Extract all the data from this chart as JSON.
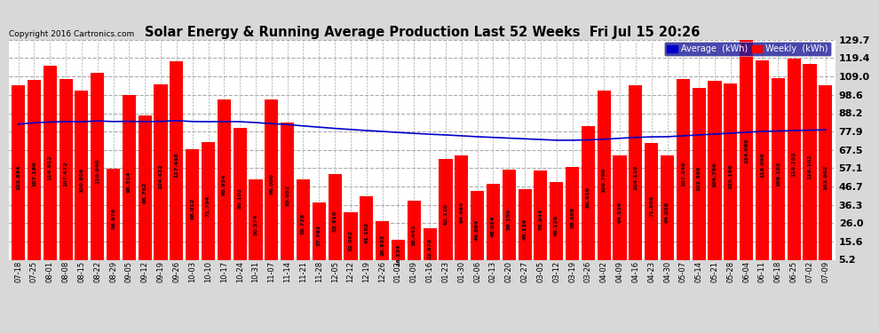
{
  "title": "Solar Energy & Running Average Production Last 52 Weeks  Fri Jul 15 20:26",
  "copyright": "Copyright 2016 Cartronics.com",
  "bar_color": "#ff0000",
  "avg_line_color": "#0000cc",
  "background_color": "#d8d8d8",
  "plot_bg_color": "#ffffff",
  "grid_color": "#aaaaaa",
  "legend_avg_color": "#0000cc",
  "legend_weekly_color": "#ff0000",
  "ylim": [
    5.2,
    129.7
  ],
  "yticks": [
    5.2,
    15.6,
    26.0,
    36.3,
    46.7,
    57.1,
    67.5,
    77.9,
    88.2,
    98.6,
    109.0,
    119.4,
    129.7
  ],
  "dates": [
    "07-18",
    "07-25",
    "08-01",
    "08-08",
    "08-15",
    "08-22",
    "08-29",
    "09-05",
    "09-12",
    "09-19",
    "09-26",
    "10-03",
    "10-10",
    "10-17",
    "10-24",
    "10-31",
    "11-07",
    "11-14",
    "11-21",
    "11-28",
    "12-05",
    "12-12",
    "12-19",
    "12-26",
    "01-02",
    "01-09",
    "01-16",
    "01-23",
    "01-30",
    "02-06",
    "02-13",
    "02-20",
    "02-27",
    "03-05",
    "03-12",
    "03-19",
    "03-26",
    "04-02",
    "04-09",
    "04-16",
    "04-23",
    "04-30",
    "05-07",
    "05-14",
    "05-21",
    "05-28",
    "06-04",
    "06-11",
    "06-18",
    "06-25",
    "07-02",
    "07-09"
  ],
  "weekly_values": [
    103.894,
    107.19,
    114.912,
    107.472,
    100.808,
    110.94,
    56.976,
    98.314,
    86.762,
    104.432,
    117.448,
    68.012,
    71.794,
    95.954,
    80.102,
    50.574,
    96.0,
    83.052,
    50.728,
    37.792,
    53.91,
    32.062,
    41.102,
    26.932,
    16.534,
    38.442,
    22.878,
    62.12,
    64.464,
    44.064,
    48.024,
    56.15,
    45.136,
    55.944,
    49.128,
    58.008,
    80.91,
    100.79,
    64.556,
    104.118,
    71.506,
    64.058,
    107.348,
    102.586,
    106.766,
    105.166,
    134.098,
    118.098,
    108.102,
    119.102,
    116.102,
    103.902
  ],
  "avg_values": [
    82.0,
    82.8,
    83.2,
    83.5,
    83.4,
    83.8,
    83.5,
    83.6,
    83.4,
    83.6,
    84.0,
    83.5,
    83.4,
    83.5,
    83.4,
    82.9,
    82.3,
    81.8,
    81.0,
    80.3,
    79.6,
    79.0,
    78.4,
    77.9,
    77.3,
    76.8,
    76.3,
    75.9,
    75.4,
    74.9,
    74.5,
    74.1,
    73.7,
    73.3,
    72.9,
    72.9,
    73.1,
    73.5,
    74.0,
    74.5,
    74.8,
    74.9,
    75.4,
    75.9,
    76.4,
    76.9,
    77.4,
    77.9,
    78.1,
    78.4,
    78.6,
    78.8
  ]
}
